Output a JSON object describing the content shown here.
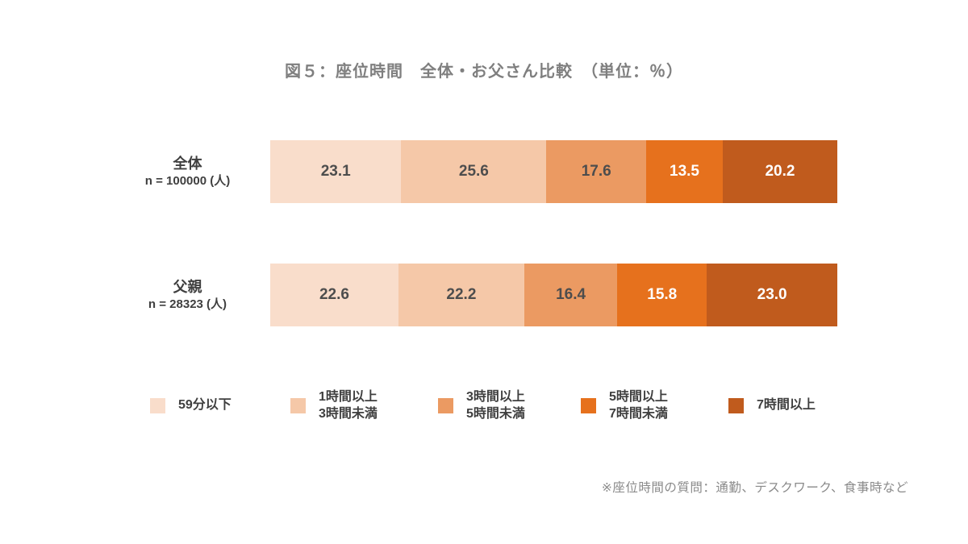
{
  "title": "図５：座位時間　全体・お父さん比較　（単位：％）",
  "footnote": "※座位時間の質問：通勤、デスクワーク、食事時など",
  "chart_data": {
    "type": "bar",
    "orientation": "horizontal",
    "stacked": true,
    "unit": "%",
    "x_range": [
      0,
      100
    ],
    "grid": false,
    "legend_position": "bottom",
    "categories": [
      "59分以下",
      "1時間以上3時間未満",
      "3時間以上5時間未満",
      "5時間以上7時間未満",
      "7時間以上"
    ],
    "colors": [
      "#f9ddcb",
      "#f5c8a8",
      "#eb9a62",
      "#e6711d",
      "#c05b1d"
    ],
    "value_text_colors": [
      "#4d4d4d",
      "#4d4d4d",
      "#4d4d4d",
      "#ffffff",
      "#ffffff"
    ],
    "rows": [
      {
        "label": "全体",
        "n_label": "n = 100000 (人)",
        "values": [
          23.1,
          25.6,
          17.6,
          13.5,
          20.2
        ],
        "labels": [
          "23.1",
          "25.6",
          "17.6",
          "13.5",
          "20.2"
        ]
      },
      {
        "label": "父親",
        "n_label": "n = 28323 (人)",
        "values": [
          22.6,
          22.2,
          16.4,
          15.8,
          23.0
        ],
        "labels": [
          "22.6",
          "22.2",
          "16.4",
          "15.8",
          "23.0"
        ]
      }
    ],
    "legend": [
      {
        "line1": "59分以下",
        "line2": ""
      },
      {
        "line1": "1時間以上",
        "line2": "3時間未満"
      },
      {
        "line1": "3時間以上",
        "line2": "5時間未満"
      },
      {
        "line1": "5時間以上",
        "line2": "7時間未満"
      },
      {
        "line1": "7時間以上",
        "line2": ""
      }
    ]
  }
}
